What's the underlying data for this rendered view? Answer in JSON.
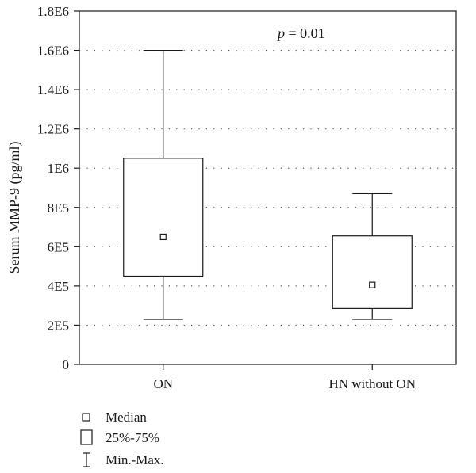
{
  "chart_data": {
    "type": "box",
    "categories": [
      "ON",
      "HN without ON"
    ],
    "boxes": [
      {
        "category": "ON",
        "min": 230000,
        "q1": 450000,
        "median": 650000,
        "q3": 1050000,
        "max": 1600000
      },
      {
        "category": "HN without ON",
        "min": 230000,
        "q1": 285000,
        "median": 405000,
        "q3": 655000,
        "max": 870000
      }
    ],
    "ylabel": "Serum MMP-9 (pg/ml)",
    "xlabel": "",
    "ylim": [
      0,
      1800000
    ],
    "yticks": [
      0,
      200000,
      400000,
      600000,
      800000,
      1000000,
      1200000,
      1400000,
      1600000,
      1800000
    ],
    "ytick_labels": [
      "0",
      "2E5",
      "4E5",
      "6E5",
      "8E5",
      "1E6",
      "1.2E6",
      "1.4E6",
      "1.6E6",
      "1.8E6"
    ],
    "grid": "horizontal-dotted",
    "annotation": {
      "prefix": "p",
      "value": " = 0.01"
    },
    "legend": {
      "placement": "bottom-left",
      "items": [
        {
          "symbol": "median-square",
          "label": "Median"
        },
        {
          "symbol": "box",
          "label": "25%-75%"
        },
        {
          "symbol": "whisker",
          "label": "Min.-Max."
        }
      ]
    },
    "colors": {
      "line": "#1a1a1a",
      "grid": "#555555",
      "background": "#ffffff"
    }
  }
}
